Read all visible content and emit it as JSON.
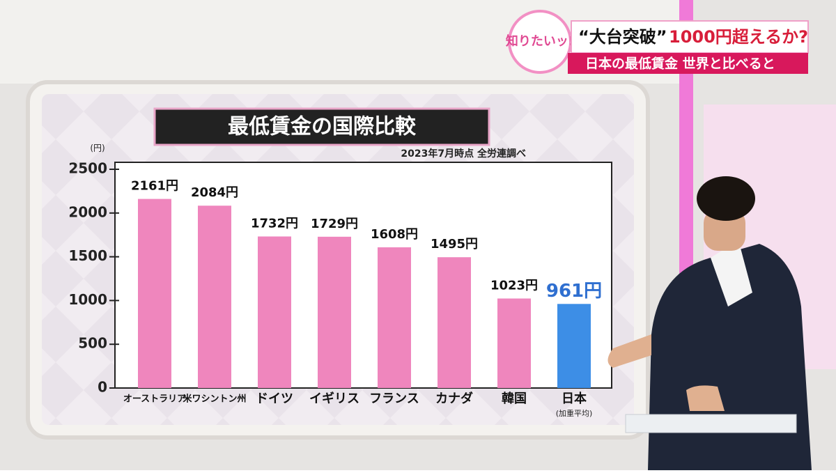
{
  "overlay": {
    "badge": "知りたいッ!",
    "headline_quote": "“大台突破”",
    "headline_main": "1000円超えるか?",
    "subheadline": "日本の最低賃金 世界と比べると"
  },
  "chart_data": {
    "type": "bar",
    "title": "最低賃金の国際比較",
    "subtitle": "2023年7月時点 全労連調べ",
    "y_unit": "(円)",
    "categories": [
      "オーストラリア",
      "米ワシントン州",
      "ドイツ",
      "イギリス",
      "フランス",
      "カナダ",
      "韓国",
      "日本"
    ],
    "category_notes": [
      null,
      null,
      null,
      null,
      null,
      null,
      null,
      "(加重平均)"
    ],
    "values": [
      2161,
      2084,
      1732,
      1729,
      1608,
      1495,
      1023,
      961
    ],
    "value_labels": [
      "2161円",
      "2084円",
      "1732円",
      "1729円",
      "1608円",
      "1495円",
      "1023円",
      "961円"
    ],
    "colors": [
      "#ef86bd",
      "#ef86bd",
      "#ef86bd",
      "#ef86bd",
      "#ef86bd",
      "#ef86bd",
      "#ef86bd",
      "#3d8ee6"
    ],
    "label_colors": [
      "#111111",
      "#111111",
      "#111111",
      "#111111",
      "#111111",
      "#111111",
      "#111111",
      "#2f6fd0"
    ],
    "ylim": [
      0,
      2500
    ],
    "yticks": [
      0,
      500,
      1000,
      1500,
      2000,
      2500
    ],
    "grid": false
  }
}
